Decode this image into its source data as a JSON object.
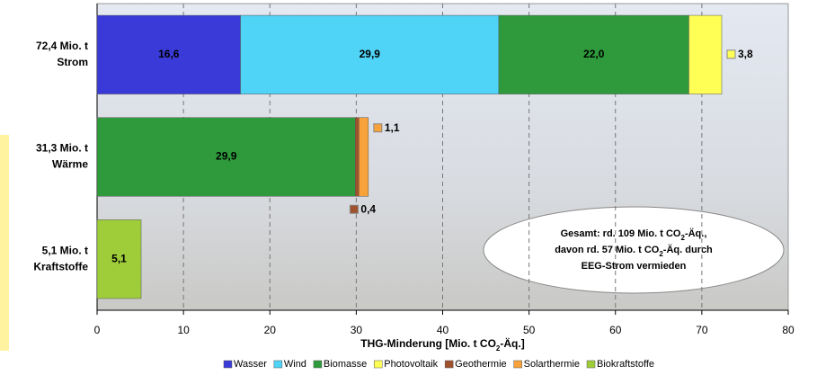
{
  "chart_data": {
    "type": "stacked-barh",
    "categories": [
      "Strom",
      "Wärme",
      "Kraftstoffe"
    ],
    "category_totals": [
      "72,4 Mio. t",
      "31,3 Mio. t",
      "5,1 Mio. t"
    ],
    "series": [
      {
        "name": "Wasser",
        "color": "#3a3ad8",
        "values": [
          16.6,
          null,
          null
        ],
        "value_labels": [
          "16,6",
          null,
          null
        ]
      },
      {
        "name": "Wind",
        "color": "#4fd3f7",
        "values": [
          29.9,
          null,
          null
        ],
        "value_labels": [
          "29,9",
          null,
          null
        ]
      },
      {
        "name": "Biomasse",
        "color": "#2e9a3c",
        "values": [
          22.0,
          29.9,
          null
        ],
        "value_labels": [
          "22,0",
          "29,9",
          null
        ]
      },
      {
        "name": "Photovoltaik",
        "color": "#ffff55",
        "values": [
          3.8,
          null,
          null
        ],
        "value_labels": [
          "3,8",
          null,
          null
        ]
      },
      {
        "name": "Geothermie",
        "color": "#a0522d",
        "values": [
          null,
          0.4,
          null
        ],
        "value_labels": [
          null,
          "0,4",
          null
        ]
      },
      {
        "name": "Solarthermie",
        "color": "#f7a23a",
        "values": [
          null,
          1.1,
          null
        ],
        "value_labels": [
          null,
          "1,1",
          null
        ]
      },
      {
        "name": "Biokraftstoffe",
        "color": "#9fcd3a",
        "values": [
          null,
          null,
          5.1
        ],
        "value_labels": [
          null,
          null,
          "5,1"
        ]
      }
    ],
    "xlim": [
      0,
      80
    ],
    "xticks": [
      0,
      10,
      20,
      30,
      40,
      50,
      60,
      70,
      80
    ],
    "grid": true,
    "xlabel": [
      "THG-Minderung [Mio. t CO",
      "2",
      "-Äq.]"
    ],
    "annotation": [
      [
        "Gesamt: rd. 109 Mio. t CO",
        "2",
        "-Äq.,"
      ],
      [
        "davon rd. 57 Mio. t CO",
        "2",
        "-Äq. durch"
      ],
      [
        "EEG-Strom vermieden"
      ]
    ],
    "legend": "bottom"
  }
}
